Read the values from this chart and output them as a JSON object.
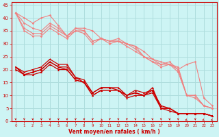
{
  "background_color": "#cdf4f4",
  "grid_color": "#aedddd",
  "x_label": "Vent moyen/en rafales ( km/h )",
  "ylim": [
    0,
    46
  ],
  "xlim": [
    -0.5,
    23.5
  ],
  "yticks": [
    0,
    5,
    10,
    15,
    20,
    25,
    30,
    35,
    40,
    45
  ],
  "x_ticks": [
    0,
    1,
    2,
    3,
    4,
    5,
    6,
    7,
    8,
    9,
    10,
    11,
    12,
    13,
    14,
    15,
    16,
    17,
    18,
    19,
    20,
    21,
    22,
    23
  ],
  "color_light": "#f08080",
  "color_dark": "#cc0000",
  "color_spine": "#cc0000",
  "light_lines": [
    [
      42,
      40,
      38,
      40,
      41,
      37,
      33,
      36,
      36,
      35,
      32,
      31,
      31,
      30,
      29,
      27,
      24,
      23,
      22,
      21,
      10,
      10,
      6,
      5
    ],
    [
      42,
      38,
      36,
      35,
      38,
      36,
      33,
      36,
      35,
      31,
      32,
      31,
      32,
      30,
      29,
      25,
      24,
      22,
      23,
      20,
      22,
      23,
      9,
      6
    ],
    [
      42,
      36,
      34,
      34,
      37,
      35,
      33,
      35,
      35,
      31,
      32,
      31,
      31,
      30,
      28,
      25,
      23,
      22,
      22,
      20,
      10,
      10,
      6,
      5
    ],
    [
      42,
      35,
      33,
      33,
      36,
      34,
      32,
      35,
      34,
      30,
      32,
      30,
      31,
      29,
      27,
      25,
      23,
      21,
      22,
      19,
      10,
      9,
      6,
      5
    ]
  ],
  "dark_lines": [
    [
      21,
      19,
      20,
      21,
      24,
      22,
      22,
      17,
      16,
      11,
      13,
      13,
      13,
      10,
      12,
      11,
      12,
      6,
      5,
      3,
      3,
      3,
      3,
      2
    ],
    [
      21,
      18,
      19,
      20,
      23,
      21,
      21,
      17,
      15,
      11,
      13,
      13,
      12,
      10,
      11,
      10,
      13,
      5,
      5,
      3,
      3,
      3,
      3,
      2
    ],
    [
      21,
      18,
      19,
      20,
      23,
      21,
      20,
      16,
      15,
      10,
      12,
      12,
      12,
      10,
      11,
      10,
      12,
      5,
      5,
      3,
      3,
      3,
      3,
      2
    ],
    [
      20,
      18,
      18,
      19,
      22,
      20,
      20,
      16,
      15,
      10,
      12,
      12,
      12,
      9,
      10,
      10,
      11,
      5,
      4,
      3,
      3,
      3,
      3,
      2
    ]
  ],
  "arrow_directions": [
    0,
    0,
    0,
    0,
    0,
    0,
    0,
    0,
    0,
    0,
    45,
    0,
    0,
    0,
    0,
    0,
    0,
    0,
    0,
    0,
    315,
    0,
    315,
    315
  ]
}
